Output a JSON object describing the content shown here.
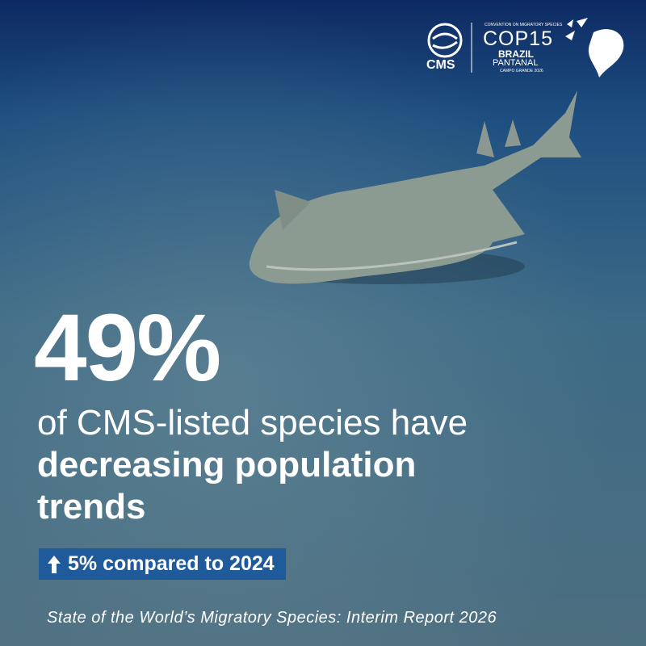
{
  "logos": {
    "cms": "CMS",
    "cop": {
      "subtitle": "CONVENTION ON MIGRATORY SPECIES",
      "title": "COP15",
      "country": "BRAZIL",
      "region": "PANTANAL",
      "city": "CAMPO GRANDE 2026"
    }
  },
  "headline": {
    "stat": "49%",
    "line1": "of CMS-listed species have",
    "line2": "decreasing population",
    "line3": "trends"
  },
  "badge": "5% compared to 2024",
  "footer": "State of the World’s Migratory Species: Interim Report 2026"
}
